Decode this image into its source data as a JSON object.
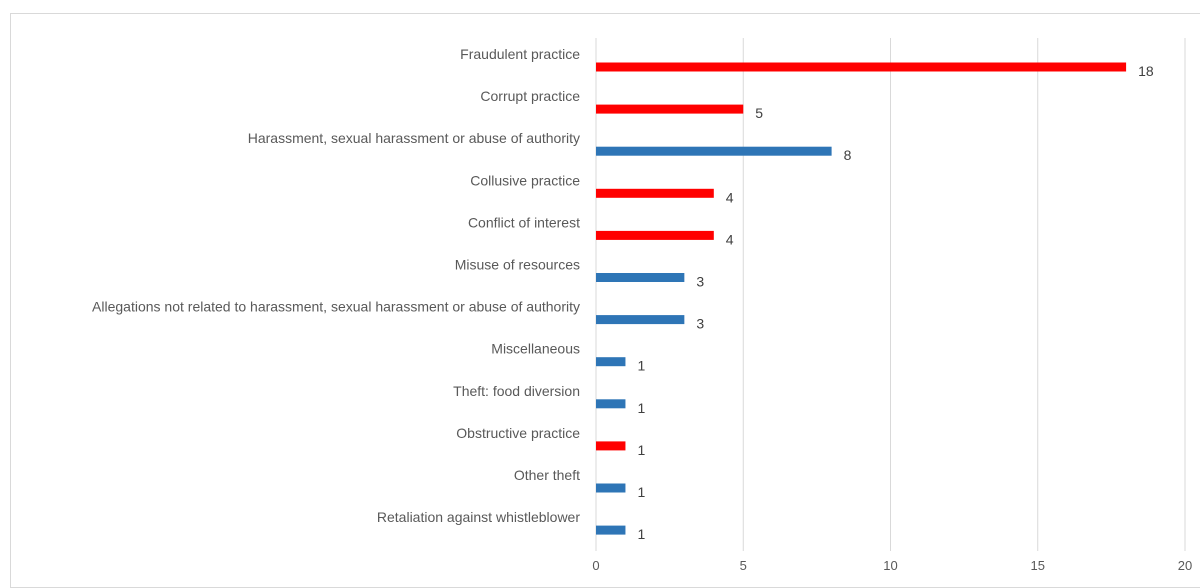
{
  "chart_data": {
    "type": "bar",
    "orientation": "horizontal",
    "title": "",
    "xlabel": "",
    "ylabel": "",
    "xlim": [
      0,
      20
    ],
    "x_ticks": [
      0,
      5,
      10,
      15,
      20
    ],
    "grid": "vertical",
    "legend": "none",
    "colors": {
      "red": "#ff0000",
      "blue": "#2e75b6"
    },
    "categories": [
      "Fraudulent practice",
      "Corrupt practice",
      "Harassment, sexual harassment or abuse of authority",
      "Collusive practice",
      "Conflict of interest",
      "Misuse of resources",
      "Allegations not related to harassment, sexual harassment or abuse of authority",
      "Miscellaneous",
      "Theft: food diversion",
      "Obstructive practice",
      "Other theft",
      "Retaliation against whistleblower"
    ],
    "values": [
      18,
      5,
      8,
      4,
      4,
      3,
      3,
      1,
      1,
      1,
      1,
      1
    ],
    "bar_colors": [
      "red",
      "red",
      "blue",
      "red",
      "red",
      "blue",
      "blue",
      "blue",
      "blue",
      "red",
      "blue",
      "blue"
    ]
  }
}
